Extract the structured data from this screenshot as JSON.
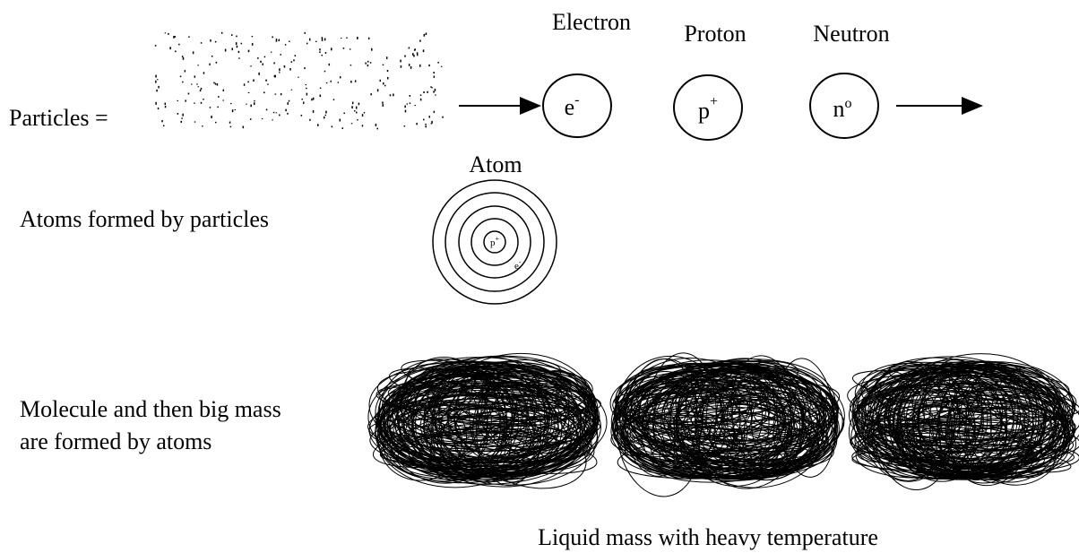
{
  "particles": {
    "label": "Particles =",
    "electron": {
      "name": "Electron",
      "symbol": "e",
      "sup": "-"
    },
    "proton": {
      "name": "Proton",
      "symbol": "p",
      "sup": "+"
    },
    "neutron": {
      "name": "Neutron",
      "symbol": "n",
      "sup": "o"
    }
  },
  "atom": {
    "title": "Atom",
    "caption": "Atoms formed by particles",
    "nucleus": {
      "symbol": "p",
      "sup": "+"
    },
    "electron": {
      "symbol": "e",
      "sup": "-"
    }
  },
  "mass": {
    "caption_lines": [
      "Molecule and then big mass",
      "are formed by atoms"
    ],
    "footer": "Liquid mass with heavy temperature"
  }
}
